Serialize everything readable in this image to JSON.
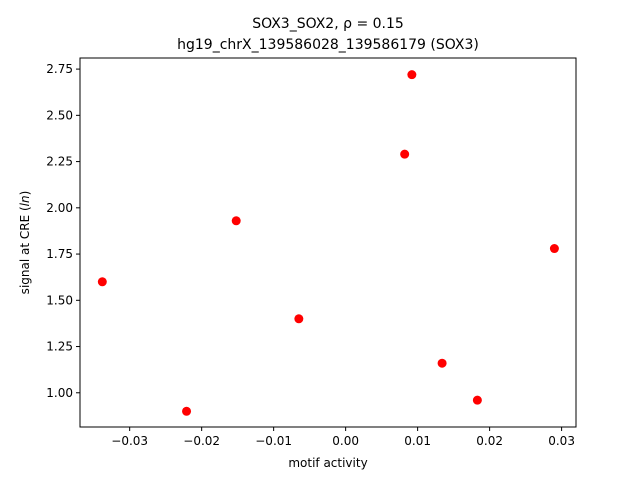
{
  "chart_data": {
    "type": "scatter",
    "title_line1": "SOX3_SOX2, ρ = 0.15",
    "title_line2": "hg19_chrX_139586028_139586179 (SOX3)",
    "xlabel": "motif activity",
    "ylabel_prefix": "signal at CRE (",
    "ylabel_italic": "ln",
    "ylabel_suffix": ")",
    "xlim": [
      -0.0369,
      0.032
    ],
    "ylim": [
      0.815,
      2.81
    ],
    "xticks": [
      -0.03,
      -0.02,
      -0.01,
      0.0,
      0.01,
      0.02,
      0.03
    ],
    "xtick_labels": [
      "−0.03",
      "−0.02",
      "−0.01",
      "0.00",
      "0.01",
      "0.02",
      "0.03"
    ],
    "yticks": [
      1.0,
      1.25,
      1.5,
      1.75,
      2.0,
      2.25,
      2.5,
      2.75
    ],
    "ytick_labels": [
      "1.00",
      "1.25",
      "1.50",
      "1.75",
      "2.00",
      "2.25",
      "2.50",
      "2.75"
    ],
    "grid": false,
    "marker_color": "#ff0000",
    "points": [
      {
        "x": -0.0338,
        "y": 1.6
      },
      {
        "x": -0.0221,
        "y": 0.9
      },
      {
        "x": -0.0152,
        "y": 1.93
      },
      {
        "x": -0.0065,
        "y": 1.4
      },
      {
        "x": 0.0082,
        "y": 2.29
      },
      {
        "x": 0.0092,
        "y": 2.72
      },
      {
        "x": 0.0134,
        "y": 1.16
      },
      {
        "x": 0.0183,
        "y": 0.96
      },
      {
        "x": 0.029,
        "y": 1.78
      }
    ]
  }
}
